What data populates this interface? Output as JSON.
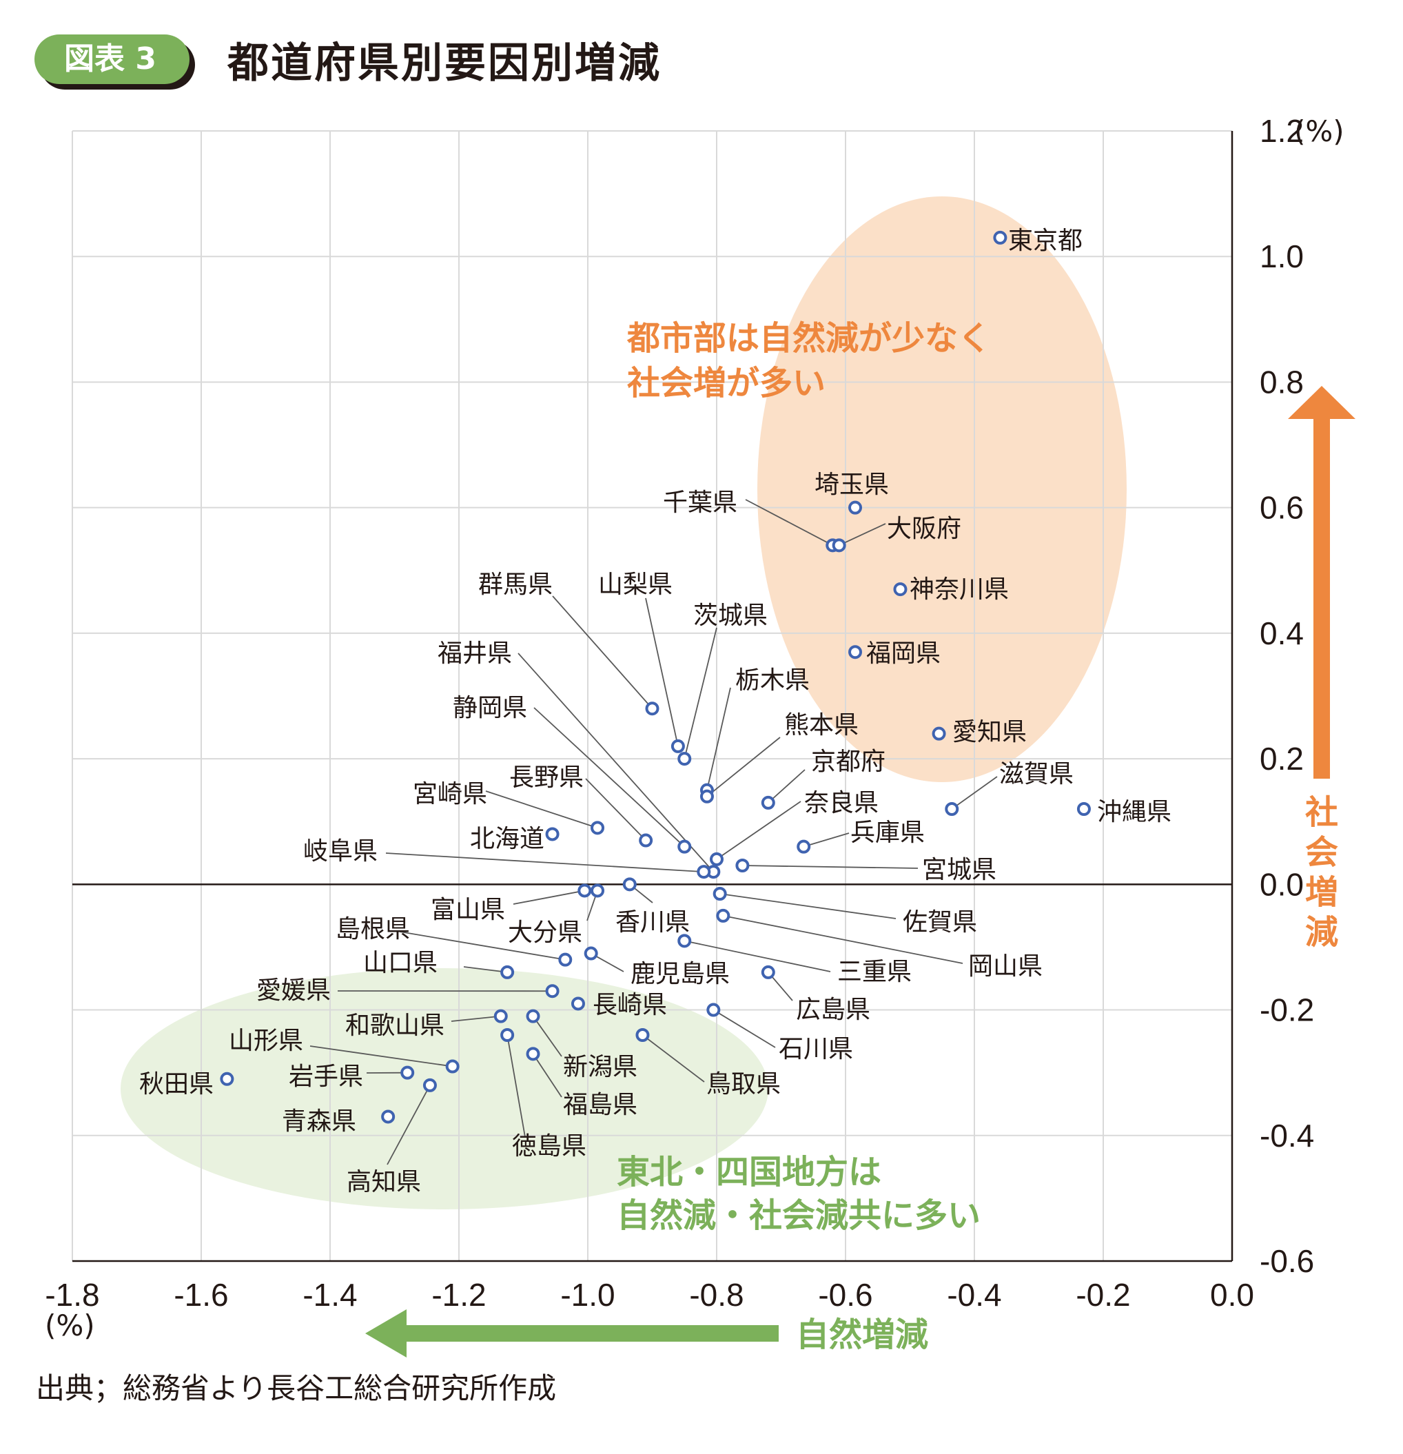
{
  "figure": {
    "badge": "図表 3",
    "title": "都道府県別要因別増減",
    "source": "出典；総務省より長谷工総合研究所作成"
  },
  "colors": {
    "badge": "#7cb15a",
    "badge_shadow": "#231815",
    "grid": "#d9d9d9",
    "axis": "#231815",
    "marker": "#3f63b0",
    "leader": "#595959",
    "urban_ellipse": "#fbe0c8",
    "urban_text": "#ee873e",
    "rural_ellipse": "#e9f2df",
    "rural_text": "#7cb15a",
    "social_arrow": "#ee873e",
    "natural_arrow": "#7cb15a"
  },
  "chart_data": {
    "type": "scatter",
    "xlabel": "自然増減",
    "ylabel": "社会増減",
    "x_unit": "(%)",
    "y_unit": "(%)",
    "xlim": [
      -1.8,
      0.0
    ],
    "ylim": [
      -0.6,
      1.2
    ],
    "x_ticks": [
      -1.8,
      -1.6,
      -1.4,
      -1.2,
      -1.0,
      -0.8,
      -0.6,
      -0.4,
      -0.2,
      0.0
    ],
    "y_ticks": [
      -0.6,
      -0.4,
      -0.2,
      0.0,
      0.2,
      0.4,
      0.6,
      0.8,
      1.0,
      1.2
    ],
    "x_tick_labels": [
      "-1.8",
      "-1.6",
      "-1.4",
      "-1.2",
      "-1.0",
      "-0.8",
      "-0.6",
      "-0.4",
      "-0.2",
      "0.0"
    ],
    "y_tick_labels": [
      "-0.6",
      "-0.4",
      "-0.2",
      "0.0",
      "0.2",
      "0.4",
      "0.6",
      "0.8",
      "1.0",
      "1.2"
    ],
    "grid": true,
    "points": [
      {
        "name": "東京都",
        "x": -0.36,
        "y": 1.03
      },
      {
        "name": "埼玉県",
        "x": -0.585,
        "y": 0.6
      },
      {
        "name": "千葉県",
        "x": -0.62,
        "y": 0.54
      },
      {
        "name": "大阪府",
        "x": -0.61,
        "y": 0.54
      },
      {
        "name": "神奈川県",
        "x": -0.515,
        "y": 0.47
      },
      {
        "name": "福岡県",
        "x": -0.585,
        "y": 0.37
      },
      {
        "name": "愛知県",
        "x": -0.455,
        "y": 0.24
      },
      {
        "name": "滋賀県",
        "x": -0.435,
        "y": 0.12
      },
      {
        "name": "沖縄県",
        "x": -0.23,
        "y": 0.12
      },
      {
        "name": "群馬県",
        "x": -0.9,
        "y": 0.28
      },
      {
        "name": "山梨県",
        "x": -0.86,
        "y": 0.22
      },
      {
        "name": "茨城県",
        "x": -0.85,
        "y": 0.2
      },
      {
        "name": "栃木県",
        "x": -0.815,
        "y": 0.15
      },
      {
        "name": "熊本県",
        "x": -0.815,
        "y": 0.14
      },
      {
        "name": "京都府",
        "x": -0.72,
        "y": 0.13
      },
      {
        "name": "奈良県",
        "x": -0.8,
        "y": 0.04
      },
      {
        "name": "兵庫県",
        "x": -0.665,
        "y": 0.06
      },
      {
        "name": "宮城県",
        "x": -0.76,
        "y": 0.03
      },
      {
        "name": "福井県",
        "x": -0.805,
        "y": 0.02
      },
      {
        "name": "静岡県",
        "x": -0.85,
        "y": 0.06
      },
      {
        "name": "長野県",
        "x": -0.91,
        "y": 0.07
      },
      {
        "name": "宮崎県",
        "x": -0.985,
        "y": 0.09
      },
      {
        "name": "北海道",
        "x": -1.055,
        "y": 0.08
      },
      {
        "name": "岐阜県",
        "x": -0.82,
        "y": 0.02
      },
      {
        "name": "富山県",
        "x": -1.005,
        "y": -0.01
      },
      {
        "name": "大分県",
        "x": -0.985,
        "y": -0.01
      },
      {
        "name": "香川県",
        "x": -0.935,
        "y": 0.0
      },
      {
        "name": "佐賀県",
        "x": -0.795,
        "y": -0.015
      },
      {
        "name": "岡山県",
        "x": -0.79,
        "y": -0.05
      },
      {
        "name": "島根県",
        "x": -1.035,
        "y": -0.12
      },
      {
        "name": "鹿児島県",
        "x": -0.995,
        "y": -0.11
      },
      {
        "name": "三重県",
        "x": -0.85,
        "y": -0.09
      },
      {
        "name": "山口県",
        "x": -1.125,
        "y": -0.14
      },
      {
        "name": "広島県",
        "x": -0.72,
        "y": -0.14
      },
      {
        "name": "愛媛県",
        "x": -1.055,
        "y": -0.17
      },
      {
        "name": "長崎県",
        "x": -1.015,
        "y": -0.19
      },
      {
        "name": "和歌山県",
        "x": -1.135,
        "y": -0.21
      },
      {
        "name": "新潟県",
        "x": -1.085,
        "y": -0.21
      },
      {
        "name": "石川県",
        "x": -0.805,
        "y": -0.2
      },
      {
        "name": "徳島県",
        "x": -1.125,
        "y": -0.24
      },
      {
        "name": "鳥取県",
        "x": -0.915,
        "y": -0.24
      },
      {
        "name": "福島県",
        "x": -1.085,
        "y": -0.27
      },
      {
        "name": "山形県",
        "x": -1.21,
        "y": -0.29
      },
      {
        "name": "岩手県",
        "x": -1.28,
        "y": -0.3
      },
      {
        "name": "高知県",
        "x": -1.245,
        "y": -0.32
      },
      {
        "name": "秋田県",
        "x": -1.56,
        "y": -0.31
      },
      {
        "name": "青森県",
        "x": -1.31,
        "y": -0.37
      }
    ],
    "annotations": [
      {
        "lines": [
          "都市部は自然減が少なく",
          "社会増が多い"
        ]
      },
      {
        "lines": [
          "東北・四国地方は",
          "自然減・社会減共に多い"
        ]
      }
    ]
  }
}
